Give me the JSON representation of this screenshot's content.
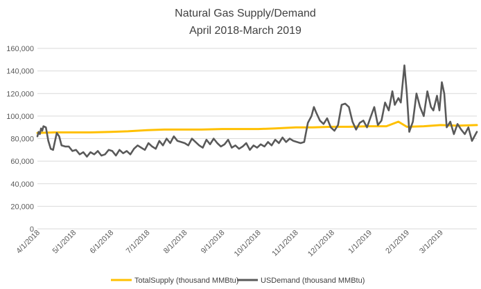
{
  "chart_data": {
    "type": "line",
    "title": "Natural Gas Supply/Demand",
    "subtitle": "April 2018-March 2019",
    "xlabel": "",
    "ylabel": "",
    "ylim": [
      0,
      160000
    ],
    "y_ticks": [
      "0",
      "20,000",
      "40,000",
      "60,000",
      "80,000",
      "100,000",
      "120,000",
      "140,000",
      "160,000"
    ],
    "x_ticks": [
      "4/1/2018",
      "5/1/2018",
      "6/1/2018",
      "7/1/2018",
      "8/1/2018",
      "9/1/2018",
      "10/1/2018",
      "11/1/2018",
      "12/1/2018",
      "1/1/2019",
      "2/1/2019",
      "3/1/2019"
    ],
    "x_range": [
      "2018-04-01",
      "2019-03-31"
    ],
    "grid": "horizontal",
    "legend_position": "bottom",
    "series": [
      {
        "name": "TotalSupply (thousand MMBtu)",
        "color": "#FFC000",
        "points": [
          [
            "2018-04-01",
            85000
          ],
          [
            "2018-04-15",
            85500
          ],
          [
            "2018-05-01",
            85500
          ],
          [
            "2018-05-15",
            85500
          ],
          [
            "2018-06-01",
            86000
          ],
          [
            "2018-06-15",
            86500
          ],
          [
            "2018-07-01",
            87500
          ],
          [
            "2018-07-15",
            88000
          ],
          [
            "2018-08-01",
            88000
          ],
          [
            "2018-08-15",
            88000
          ],
          [
            "2018-09-01",
            88500
          ],
          [
            "2018-09-15",
            88500
          ],
          [
            "2018-10-01",
            88500
          ],
          [
            "2018-10-15",
            89000
          ],
          [
            "2018-11-01",
            90000
          ],
          [
            "2018-11-15",
            90000
          ],
          [
            "2018-12-01",
            90500
          ],
          [
            "2018-12-15",
            90500
          ],
          [
            "2019-01-01",
            91000
          ],
          [
            "2019-01-15",
            91000
          ],
          [
            "2019-01-25",
            95000
          ],
          [
            "2019-02-01",
            90500
          ],
          [
            "2019-02-15",
            91000
          ],
          [
            "2019-03-01",
            92000
          ],
          [
            "2019-03-15",
            91500
          ],
          [
            "2019-03-31",
            92000
          ]
        ]
      },
      {
        "name": "USDemand (thousand MMBtu)",
        "color": "#595959",
        "points": [
          [
            "2018-04-01",
            82000
          ],
          [
            "2018-04-02",
            86000
          ],
          [
            "2018-04-03",
            84000
          ],
          [
            "2018-04-04",
            89000
          ],
          [
            "2018-04-05",
            87000
          ],
          [
            "2018-04-06",
            91000
          ],
          [
            "2018-04-08",
            90000
          ],
          [
            "2018-04-10",
            78000
          ],
          [
            "2018-04-12",
            71000
          ],
          [
            "2018-04-14",
            70000
          ],
          [
            "2018-04-17",
            85000
          ],
          [
            "2018-04-19",
            82000
          ],
          [
            "2018-04-21",
            74000
          ],
          [
            "2018-04-24",
            73000
          ],
          [
            "2018-04-27",
            73000
          ],
          [
            "2018-04-30",
            69000
          ],
          [
            "2018-05-03",
            70000
          ],
          [
            "2018-05-06",
            66000
          ],
          [
            "2018-05-09",
            68000
          ],
          [
            "2018-05-12",
            64000
          ],
          [
            "2018-05-15",
            68000
          ],
          [
            "2018-05-18",
            66000
          ],
          [
            "2018-05-21",
            69000
          ],
          [
            "2018-05-24",
            65000
          ],
          [
            "2018-05-27",
            66000
          ],
          [
            "2018-05-30",
            70000
          ],
          [
            "2018-06-02",
            69000
          ],
          [
            "2018-06-05",
            65000
          ],
          [
            "2018-06-08",
            70000
          ],
          [
            "2018-06-11",
            67000
          ],
          [
            "2018-06-14",
            69000
          ],
          [
            "2018-06-17",
            66000
          ],
          [
            "2018-06-20",
            71000
          ],
          [
            "2018-06-23",
            74000
          ],
          [
            "2018-06-26",
            72000
          ],
          [
            "2018-06-29",
            70000
          ],
          [
            "2018-07-02",
            76000
          ],
          [
            "2018-07-05",
            73000
          ],
          [
            "2018-07-08",
            71000
          ],
          [
            "2018-07-11",
            78000
          ],
          [
            "2018-07-14",
            74000
          ],
          [
            "2018-07-17",
            80000
          ],
          [
            "2018-07-20",
            76000
          ],
          [
            "2018-07-23",
            82000
          ],
          [
            "2018-07-26",
            78000
          ],
          [
            "2018-07-29",
            77000
          ],
          [
            "2018-08-01",
            76000
          ],
          [
            "2018-08-04",
            74000
          ],
          [
            "2018-08-07",
            80000
          ],
          [
            "2018-08-10",
            77000
          ],
          [
            "2018-08-13",
            74000
          ],
          [
            "2018-08-16",
            72000
          ],
          [
            "2018-08-19",
            79000
          ],
          [
            "2018-08-22",
            75000
          ],
          [
            "2018-08-25",
            80000
          ],
          [
            "2018-08-28",
            76000
          ],
          [
            "2018-08-31",
            73000
          ],
          [
            "2018-09-03",
            75000
          ],
          [
            "2018-09-06",
            79000
          ],
          [
            "2018-09-09",
            72000
          ],
          [
            "2018-09-12",
            74000
          ],
          [
            "2018-09-15",
            71000
          ],
          [
            "2018-09-18",
            73000
          ],
          [
            "2018-09-21",
            76000
          ],
          [
            "2018-09-24",
            70000
          ],
          [
            "2018-09-27",
            74000
          ],
          [
            "2018-09-30",
            72000
          ],
          [
            "2018-10-03",
            75000
          ],
          [
            "2018-10-06",
            73000
          ],
          [
            "2018-10-09",
            77000
          ],
          [
            "2018-10-12",
            74000
          ],
          [
            "2018-10-15",
            79000
          ],
          [
            "2018-10-18",
            76000
          ],
          [
            "2018-10-21",
            81000
          ],
          [
            "2018-10-24",
            77000
          ],
          [
            "2018-10-27",
            80000
          ],
          [
            "2018-10-30",
            78000
          ],
          [
            "2018-11-02",
            77000
          ],
          [
            "2018-11-05",
            76000
          ],
          [
            "2018-11-08",
            77000
          ],
          [
            "2018-11-11",
            94000
          ],
          [
            "2018-11-14",
            100000
          ],
          [
            "2018-11-16",
            108000
          ],
          [
            "2018-11-18",
            103000
          ],
          [
            "2018-11-21",
            96000
          ],
          [
            "2018-11-24",
            93000
          ],
          [
            "2018-11-27",
            98000
          ],
          [
            "2018-11-30",
            90000
          ],
          [
            "2018-12-03",
            87000
          ],
          [
            "2018-12-06",
            92000
          ],
          [
            "2018-12-09",
            110000
          ],
          [
            "2018-12-12",
            111000
          ],
          [
            "2018-12-15",
            108000
          ],
          [
            "2018-12-18",
            95000
          ],
          [
            "2018-12-21",
            88000
          ],
          [
            "2018-12-24",
            94000
          ],
          [
            "2018-12-27",
            96000
          ],
          [
            "2018-12-30",
            90000
          ],
          [
            "2019-01-02",
            99000
          ],
          [
            "2019-01-05",
            108000
          ],
          [
            "2019-01-08",
            92000
          ],
          [
            "2019-01-11",
            96000
          ],
          [
            "2019-01-14",
            112000
          ],
          [
            "2019-01-17",
            105000
          ],
          [
            "2019-01-20",
            122000
          ],
          [
            "2019-01-22",
            110000
          ],
          [
            "2019-01-25",
            116000
          ],
          [
            "2019-01-27",
            112000
          ],
          [
            "2019-01-30",
            145000
          ],
          [
            "2019-02-01",
            120000
          ],
          [
            "2019-02-03",
            86000
          ],
          [
            "2019-02-06",
            95000
          ],
          [
            "2019-02-09",
            120000
          ],
          [
            "2019-02-12",
            108000
          ],
          [
            "2019-02-15",
            100000
          ],
          [
            "2019-02-18",
            122000
          ],
          [
            "2019-02-21",
            108000
          ],
          [
            "2019-02-23",
            105000
          ],
          [
            "2019-02-26",
            118000
          ],
          [
            "2019-02-28",
            105000
          ],
          [
            "2019-03-02",
            130000
          ],
          [
            "2019-03-04",
            120000
          ],
          [
            "2019-03-06",
            90000
          ],
          [
            "2019-03-09",
            95000
          ],
          [
            "2019-03-12",
            84000
          ],
          [
            "2019-03-15",
            93000
          ],
          [
            "2019-03-18",
            88000
          ],
          [
            "2019-03-21",
            84000
          ],
          [
            "2019-03-24",
            90000
          ],
          [
            "2019-03-27",
            78000
          ],
          [
            "2019-03-31",
            86000
          ]
        ]
      }
    ]
  }
}
